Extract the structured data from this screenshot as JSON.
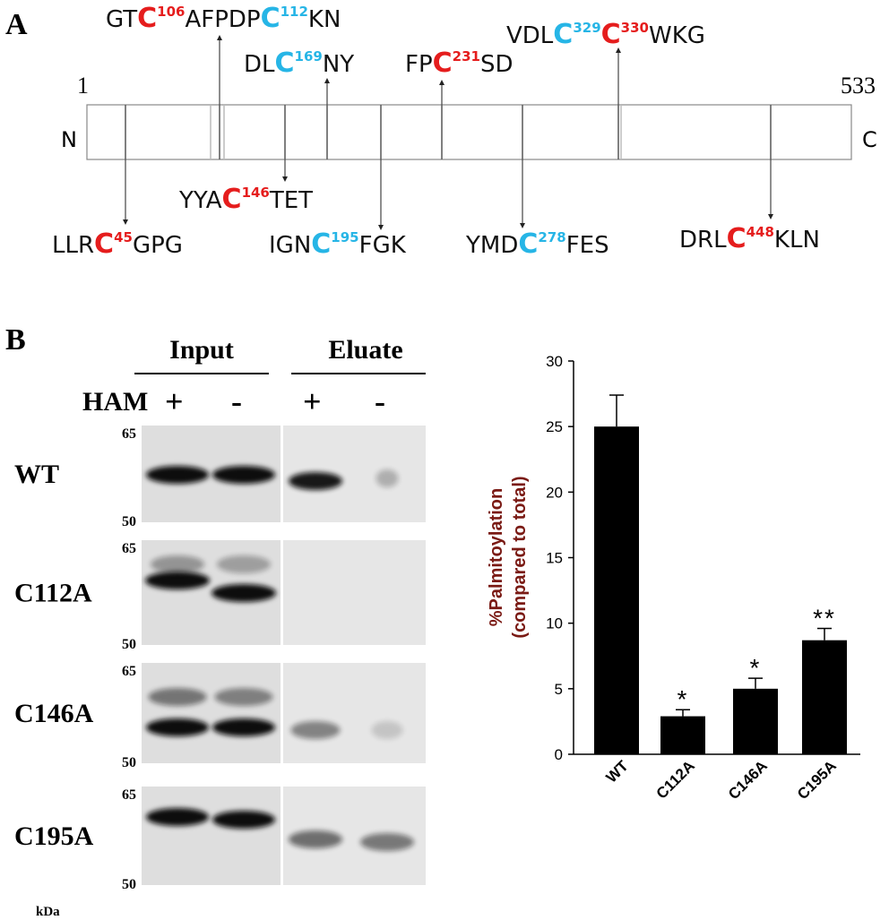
{
  "panel_a": {
    "label": "A",
    "start": "1",
    "end": "533",
    "n_term": "N",
    "c_term": "C",
    "sites": [
      {
        "pieces": [
          {
            "text": "GT"
          },
          {
            "text": "C",
            "color": "#e51d1d",
            "bold": true
          },
          {
            "text": "106",
            "color": "#e51d1d",
            "sup": true
          },
          {
            "text": "AFPDP"
          },
          {
            "text": "C",
            "color": "#26b5e6",
            "bold": true
          },
          {
            "text": "112",
            "color": "#26b5e6",
            "sup": true
          },
          {
            "text": "KN"
          }
        ]
      },
      {
        "pieces": [
          {
            "text": "DL"
          },
          {
            "text": "C",
            "color": "#26b5e6",
            "bold": true
          },
          {
            "text": "169",
            "color": "#26b5e6",
            "sup": true
          },
          {
            "text": "NY"
          }
        ]
      },
      {
        "pieces": [
          {
            "text": "FP"
          },
          {
            "text": "C",
            "color": "#e51d1d",
            "bold": true
          },
          {
            "text": "231",
            "color": "#e51d1d",
            "sup": true
          },
          {
            "text": "SD"
          }
        ]
      },
      {
        "pieces": [
          {
            "text": "VDL"
          },
          {
            "text": "C",
            "color": "#26b5e6",
            "bold": true
          },
          {
            "text": "329",
            "color": "#26b5e6",
            "sup": true
          },
          {
            "text": "C",
            "color": "#e51d1d",
            "bold": true
          },
          {
            "text": "330",
            "color": "#e51d1d",
            "sup": true
          },
          {
            "text": "WKG"
          }
        ]
      },
      {
        "pieces": [
          {
            "text": "LLR"
          },
          {
            "text": "C",
            "color": "#e51d1d",
            "bold": true
          },
          {
            "text": "45",
            "color": "#e51d1d",
            "sup": true
          },
          {
            "text": "GPG"
          }
        ]
      },
      {
        "pieces": [
          {
            "text": "YYA"
          },
          {
            "text": "C",
            "color": "#e51d1d",
            "bold": true
          },
          {
            "text": "146",
            "color": "#e51d1d",
            "sup": true
          },
          {
            "text": "TET"
          }
        ]
      },
      {
        "pieces": [
          {
            "text": "IGN"
          },
          {
            "text": "C",
            "color": "#26b5e6",
            "bold": true
          },
          {
            "text": "195",
            "color": "#26b5e6",
            "sup": true
          },
          {
            "text": "FGK"
          }
        ]
      },
      {
        "pieces": [
          {
            "text": "YMD"
          },
          {
            "text": "C",
            "color": "#26b5e6",
            "bold": true
          },
          {
            "text": "278",
            "color": "#26b5e6",
            "sup": true
          },
          {
            "text": "FES"
          }
        ]
      },
      {
        "pieces": [
          {
            "text": "DRL"
          },
          {
            "text": "C",
            "color": "#e51d1d",
            "bold": true
          },
          {
            "text": "448",
            "color": "#e51d1d",
            "sup": true
          },
          {
            "text": "KLN"
          }
        ]
      }
    ]
  },
  "panel_b": {
    "label": "B",
    "groups": [
      "Input",
      "Eluate"
    ],
    "treatment": "HAM",
    "lanes": [
      "+",
      "-",
      "+",
      "-"
    ],
    "rows": [
      {
        "name": "WT",
        "marker_top": "65",
        "marker_bottom": "50"
      },
      {
        "name": "C112A",
        "marker_top": "65",
        "marker_bottom": "50"
      },
      {
        "name": "C146A",
        "marker_top": "65",
        "marker_bottom": "50"
      },
      {
        "name": "C195A",
        "marker_top": "65",
        "marker_bottom": "50"
      }
    ],
    "unit": "kDa"
  },
  "chart_data": {
    "type": "bar",
    "y_label": [
      "%Palmitoylation",
      "(compared to total)"
    ],
    "categories": [
      "WT",
      "C112A",
      "C146A",
      "C195A"
    ],
    "values": [
      25,
      2.9,
      5.0,
      8.7
    ],
    "errors": [
      2.4,
      0.5,
      0.8,
      0.9
    ],
    "annotations": [
      null,
      "*",
      "*",
      "**"
    ],
    "color": "#000000",
    "ylim": [
      0,
      30
    ],
    "yticks": [
      0,
      5,
      10,
      15,
      20,
      25,
      30
    ]
  }
}
